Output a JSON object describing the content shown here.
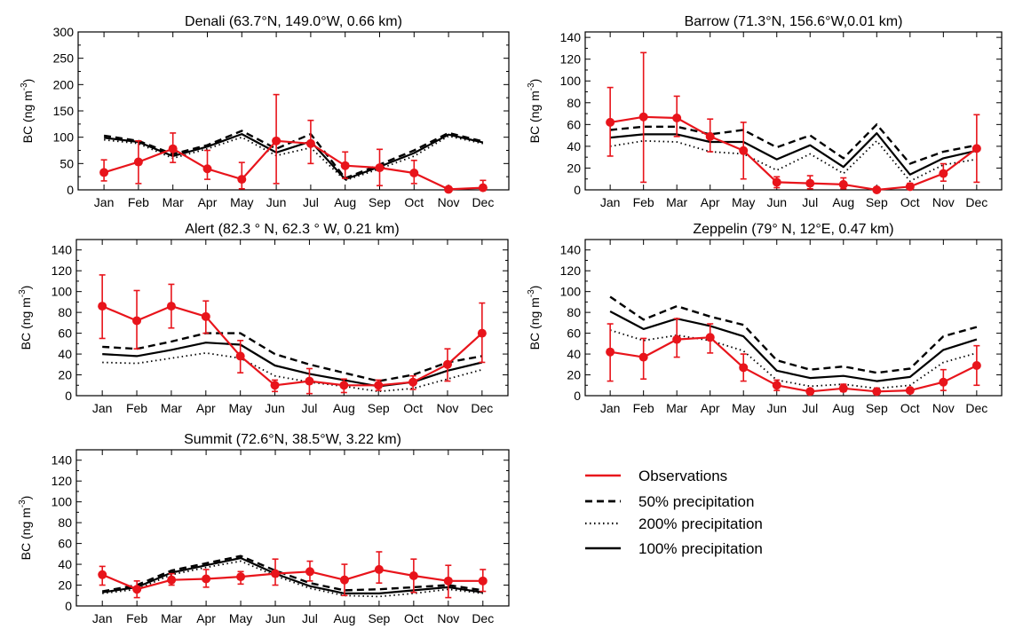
{
  "months": [
    "Jan",
    "Feb",
    "Mar",
    "Apr",
    "May",
    "Jun",
    "Jul",
    "Aug",
    "Sep",
    "Oct",
    "Nov",
    "Dec"
  ],
  "ylabel": "BC (ng m",
  "ylabel_sup": "-3",
  "ylabel_close": ")",
  "legend": [
    {
      "label": "Observations",
      "style": "obs",
      "color": "#e8141b"
    },
    {
      "label": "50% precipitation",
      "style": "dashed",
      "color": "#000000"
    },
    {
      "label": "200% precipitation",
      "style": "dotted",
      "color": "#000000"
    },
    {
      "label": "100% precipitation",
      "style": "solid",
      "color": "#000000"
    }
  ],
  "chart_data": [
    {
      "type": "line",
      "title": "Denali (63.7°N, 149.0°W, 0.66 km)",
      "ylim": [
        0,
        300
      ],
      "yticks": [
        0,
        50,
        100,
        150,
        200,
        250,
        300
      ],
      "series": [
        {
          "name": "Observations",
          "values": [
            33,
            53,
            78,
            40,
            20,
            93,
            88,
            46,
            42,
            32,
            1,
            4
          ],
          "err_low": [
            17,
            12,
            52,
            20,
            2,
            12,
            50,
            22,
            8,
            12,
            0,
            0
          ],
          "err_high": [
            57,
            93,
            108,
            75,
            52,
            181,
            132,
            72,
            77,
            56,
            2,
            18
          ]
        },
        {
          "name": "50% precipitation",
          "values": [
            103,
            93,
            68,
            85,
            112,
            78,
            106,
            22,
            48,
            75,
            108,
            92
          ]
        },
        {
          "name": "200% precipitation",
          "values": [
            95,
            88,
            60,
            78,
            100,
            65,
            80,
            18,
            40,
            64,
            102,
            88
          ]
        },
        {
          "name": "100% precipitation",
          "values": [
            99,
            91,
            64,
            82,
            106,
            71,
            92,
            20,
            44,
            70,
            105,
            90
          ]
        }
      ]
    },
    {
      "type": "line",
      "title": "Barrow (71.3°N, 156.6°W,0.01 km)",
      "ylim": [
        0,
        145
      ],
      "yticks": [
        0,
        20,
        40,
        60,
        80,
        100,
        120,
        140
      ],
      "series": [
        {
          "name": "Observations",
          "values": [
            62,
            67,
            66,
            49,
            36,
            7,
            6,
            5,
            0,
            3,
            15,
            38
          ],
          "err_low": [
            31,
            7,
            49,
            35,
            10,
            2,
            1,
            1,
            0,
            1,
            8,
            7
          ],
          "err_high": [
            94,
            126,
            86,
            65,
            62,
            12,
            13,
            11,
            1,
            6,
            24,
            69
          ]
        },
        {
          "name": "50% precipitation",
          "values": [
            55,
            58,
            58,
            51,
            55,
            39,
            50,
            29,
            60,
            24,
            35,
            41
          ]
        },
        {
          "name": "200% precipitation",
          "values": [
            40,
            45,
            44,
            35,
            33,
            18,
            33,
            15,
            45,
            8,
            23,
            28
          ]
        },
        {
          "name": "100% precipitation",
          "values": [
            48,
            51,
            51,
            44,
            44,
            28,
            41,
            21,
            52,
            14,
            29,
            36
          ]
        }
      ]
    },
    {
      "type": "line",
      "title": "Alert (82.3 ° N, 62.3 ° W, 0.21 km)",
      "ylim": [
        0,
        150
      ],
      "yticks": [
        0,
        20,
        40,
        60,
        80,
        100,
        120,
        140
      ],
      "series": [
        {
          "name": "Observations",
          "values": [
            86,
            72,
            86,
            76,
            38,
            10,
            14,
            10,
            10,
            13,
            30,
            60
          ],
          "err_low": [
            55,
            45,
            65,
            60,
            22,
            4,
            2,
            3,
            5,
            6,
            14,
            32
          ],
          "err_high": [
            116,
            101,
            107,
            91,
            53,
            15,
            26,
            16,
            15,
            19,
            45,
            89
          ]
        },
        {
          "name": "50% precipitation",
          "values": [
            47,
            45,
            52,
            60,
            60,
            40,
            30,
            22,
            14,
            20,
            32,
            38
          ]
        },
        {
          "name": "200% precipitation",
          "values": [
            32,
            31,
            36,
            41,
            36,
            19,
            13,
            9,
            4,
            7,
            16,
            25
          ]
        },
        {
          "name": "100% precipitation",
          "values": [
            40,
            38,
            44,
            51,
            49,
            29,
            21,
            15,
            9,
            13,
            24,
            32
          ]
        }
      ]
    },
    {
      "type": "line",
      "title": "Zeppelin (79° N, 12°E, 0.47 km)",
      "ylim": [
        0,
        150
      ],
      "yticks": [
        0,
        20,
        40,
        60,
        80,
        100,
        120,
        140
      ],
      "series": [
        {
          "name": "Observations",
          "values": [
            42,
            37,
            54,
            56,
            27,
            10,
            4,
            7,
            4,
            5,
            13,
            29
          ],
          "err_low": [
            14,
            16,
            37,
            41,
            14,
            5,
            2,
            4,
            2,
            3,
            5,
            10
          ],
          "err_high": [
            69,
            55,
            74,
            69,
            40,
            15,
            6,
            11,
            6,
            7,
            25,
            48
          ]
        },
        {
          "name": "50% precipitation",
          "values": [
            95,
            73,
            86,
            76,
            68,
            34,
            25,
            28,
            22,
            26,
            57,
            66
          ]
        },
        {
          "name": "200% precipitation",
          "values": [
            63,
            53,
            58,
            53,
            43,
            15,
            9,
            11,
            7,
            10,
            32,
            41
          ]
        },
        {
          "name": "100% precipitation",
          "values": [
            81,
            64,
            74,
            67,
            57,
            24,
            17,
            19,
            14,
            18,
            44,
            54
          ]
        }
      ]
    },
    {
      "type": "line",
      "title": "Summit (72.6°N, 38.5°W, 3.22 km)",
      "ylim": [
        0,
        150
      ],
      "yticks": [
        0,
        20,
        40,
        60,
        80,
        100,
        120,
        140
      ],
      "series": [
        {
          "name": "Observations",
          "values": [
            30,
            16,
            25,
            26,
            28,
            31,
            33,
            25,
            35,
            29,
            24,
            24
          ],
          "err_low": [
            20,
            8,
            20,
            18,
            21,
            20,
            24,
            10,
            22,
            13,
            8,
            14
          ],
          "err_high": [
            38,
            24,
            31,
            35,
            33,
            45,
            43,
            40,
            52,
            45,
            39,
            35
          ]
        },
        {
          "name": "50% precipitation",
          "values": [
            14,
            20,
            34,
            41,
            48,
            34,
            22,
            15,
            16,
            18,
            20,
            15
          ]
        },
        {
          "name": "200% precipitation",
          "values": [
            12,
            16,
            30,
            37,
            43,
            29,
            17,
            10,
            9,
            12,
            16,
            12
          ]
        },
        {
          "name": "100% precipitation",
          "values": [
            13,
            18,
            32,
            39,
            46,
            31,
            19,
            12,
            12,
            15,
            18,
            13
          ]
        }
      ]
    }
  ]
}
